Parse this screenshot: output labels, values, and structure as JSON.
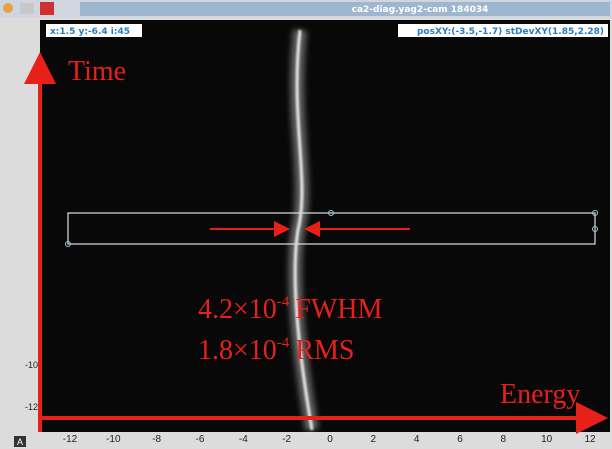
{
  "window": {
    "title": "ca2-diag.yag2-cam 184034"
  },
  "status": {
    "left": "x:1.5 y:-6.4 i:45",
    "right": "posXY:(-3.5,-1.7) stDevXY(1.85,2.28)"
  },
  "annotations": {
    "time": "Time",
    "energy": "Energy",
    "fwhm": {
      "mantissa": "4.2×10",
      "exponent": "-4",
      "unit": "FWHM"
    },
    "rms": {
      "mantissa": "1.8×10",
      "exponent": "-4",
      "unit": "RMS"
    }
  },
  "axis": {
    "x_labels": [
      "-12",
      "-10",
      "-8",
      "-6",
      "-4",
      "-2",
      "0",
      "2",
      "4",
      "6",
      "8",
      "10",
      "12"
    ],
    "y_labels": [
      "-10",
      "-12"
    ]
  },
  "corner_button": "A"
}
